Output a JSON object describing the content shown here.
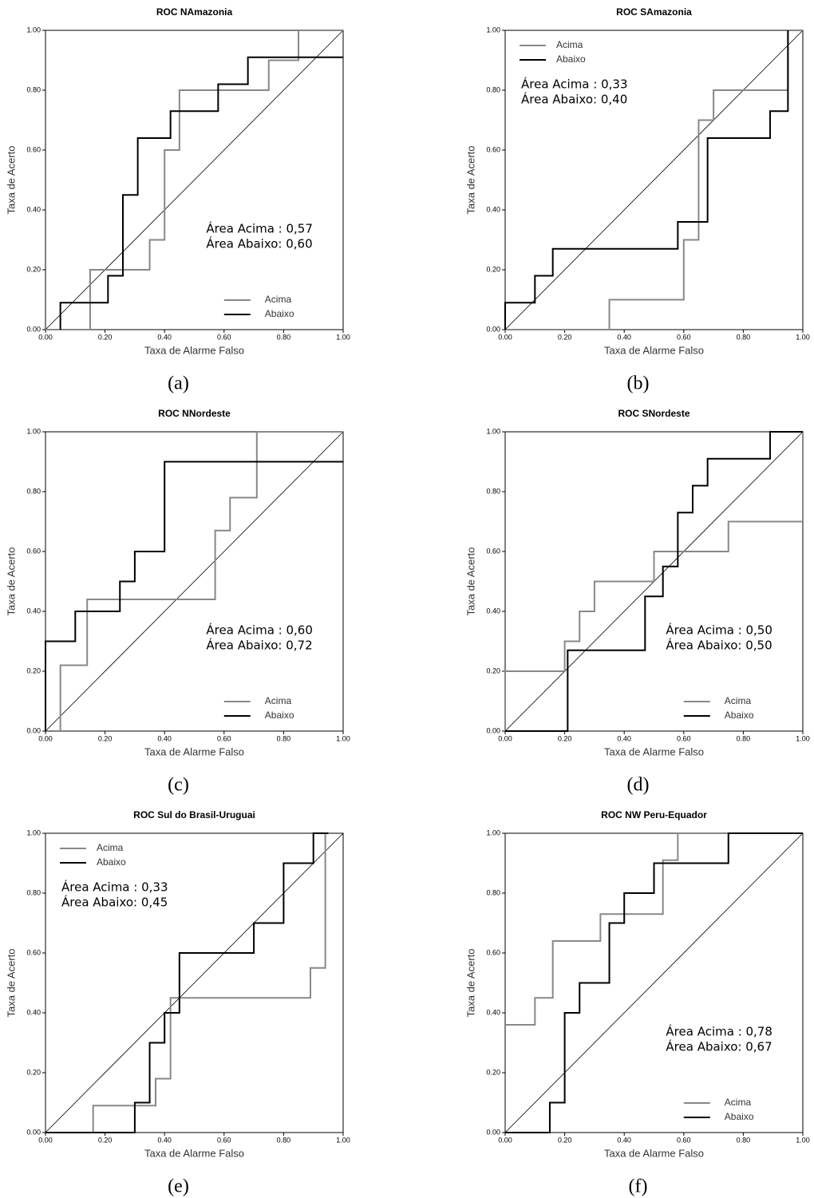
{
  "chart_data": [
    {
      "type": "line",
      "title": "ROC NAmazonia",
      "panel_label": "(a)",
      "xlabel": "Taxa de Alarme Falso",
      "ylabel": "Taxa de Acerto",
      "annotations": [
        "Área Acima : 0,57",
        "Área Abaixo: 0,60"
      ],
      "legend": "lower right",
      "diagonal": true,
      "xlim": [
        0,
        1
      ],
      "ylim": [
        0,
        1
      ],
      "xticks": [
        {
          "value": 0,
          "label": "0.00"
        },
        {
          "value": 0.2,
          "label": "0.20"
        },
        {
          "value": 0.4,
          "label": "0.40"
        },
        {
          "value": 0.6,
          "label": "0.60"
        },
        {
          "value": 0.8,
          "label": "0.80"
        },
        {
          "value": 1,
          "label": "1.00"
        }
      ],
      "yticks": [
        {
          "value": 0,
          "label": "0.00"
        },
        {
          "value": 0.2,
          "label": "0.20"
        },
        {
          "value": 0.4,
          "label": "0.40"
        },
        {
          "value": 0.6,
          "label": "0.60"
        },
        {
          "value": 0.8,
          "label": "0.80"
        },
        {
          "value": 1,
          "label": "1.00"
        }
      ],
      "series": [
        {
          "name": "Acima",
          "color": "#888888",
          "x": [
            0,
            0.15,
            0.15,
            0.35,
            0.35,
            0.4,
            0.4,
            0.45,
            0.45,
            0.75,
            0.75,
            0.85,
            0.85,
            1
          ],
          "values": [
            0,
            0,
            0.2,
            0.2,
            0.3,
            0.3,
            0.6,
            0.6,
            0.8,
            0.8,
            0.9,
            0.9,
            1,
            1
          ]
        },
        {
          "name": "Abaixo",
          "color": "#000000",
          "x": [
            0.05,
            0.05,
            0.21,
            0.21,
            0.26,
            0.26,
            0.31,
            0.31,
            0.42,
            0.42,
            0.58,
            0.58,
            0.68,
            0.68,
            1
          ],
          "values": [
            0,
            0.09,
            0.09,
            0.18,
            0.18,
            0.45,
            0.45,
            0.64,
            0.64,
            0.73,
            0.73,
            0.82,
            0.82,
            0.91,
            0.91
          ]
        }
      ]
    },
    {
      "type": "line",
      "title": "ROC SAmazonia",
      "panel_label": "(b)",
      "xlabel": "Taxa de Alarme Falso",
      "ylabel": "Taxa de Acerto",
      "annotations": [
        "Área Acima : 0,33",
        "Área Abaixo: 0,40"
      ],
      "legend": "upper left",
      "diagonal": true,
      "xlim": [
        0,
        1
      ],
      "ylim": [
        0,
        1
      ],
      "xticks": [
        {
          "value": 0,
          "label": "0.00"
        },
        {
          "value": 0.2,
          "label": "0.20"
        },
        {
          "value": 0.4,
          "label": "0.40"
        },
        {
          "value": 0.6,
          "label": "0.60"
        },
        {
          "value": 0.8,
          "label": "0.80"
        },
        {
          "value": 1,
          "label": "1.00"
        }
      ],
      "yticks": [
        {
          "value": 0,
          "label": "0.00"
        },
        {
          "value": 0.2,
          "label": "0.20"
        },
        {
          "value": 0.4,
          "label": "0.40"
        },
        {
          "value": 0.6,
          "label": "0.60"
        },
        {
          "value": 0.8,
          "label": "0.80"
        },
        {
          "value": 1,
          "label": "1.00"
        }
      ],
      "series": [
        {
          "name": "Acima",
          "color": "#888888",
          "x": [
            0,
            0.35,
            0.35,
            0.6,
            0.6,
            0.65,
            0.65,
            0.7,
            0.7,
            0.95,
            0.95,
            1
          ],
          "values": [
            0,
            0,
            0.1,
            0.1,
            0.3,
            0.3,
            0.7,
            0.7,
            0.8,
            0.8,
            1,
            1
          ]
        },
        {
          "name": "Abaixo",
          "color": "#000000",
          "x": [
            0,
            0,
            0.1,
            0.1,
            0.16,
            0.16,
            0.58,
            0.58,
            0.68,
            0.68,
            0.89,
            0.89,
            0.95,
            0.95
          ],
          "values": [
            0,
            0.09,
            0.09,
            0.18,
            0.18,
            0.27,
            0.27,
            0.36,
            0.36,
            0.64,
            0.64,
            0.73,
            0.73,
            1
          ]
        }
      ]
    },
    {
      "type": "line",
      "title": "ROC NNordeste",
      "panel_label": "(c)",
      "xlabel": "Taxa de Alarme Falso",
      "ylabel": "Taxa de Acerto",
      "annotations": [
        "Área Acima : 0,60",
        "Área Abaixo: 0,72"
      ],
      "legend": "lower right",
      "diagonal": true,
      "xlim": [
        0,
        1
      ],
      "ylim": [
        0,
        1
      ],
      "xticks": [
        {
          "value": 0,
          "label": "0.00"
        },
        {
          "value": 0.2,
          "label": "0.20"
        },
        {
          "value": 0.4,
          "label": "0.40"
        },
        {
          "value": 0.6,
          "label": "0.60"
        },
        {
          "value": 0.8,
          "label": "0.80"
        },
        {
          "value": 1,
          "label": "1.00"
        }
      ],
      "yticks": [
        {
          "value": 0,
          "label": "0.00"
        },
        {
          "value": 0.2,
          "label": "0.20"
        },
        {
          "value": 0.4,
          "label": "0.40"
        },
        {
          "value": 0.6,
          "label": "0.60"
        },
        {
          "value": 0.8,
          "label": "0.80"
        },
        {
          "value": 1,
          "label": "1.00"
        }
      ],
      "series": [
        {
          "name": "Acima",
          "color": "#888888",
          "x": [
            0.05,
            0.05,
            0.14,
            0.14,
            0.57,
            0.57,
            0.62,
            0.62,
            0.71,
            0.71,
            1
          ],
          "values": [
            0,
            0.22,
            0.22,
            0.44,
            0.44,
            0.67,
            0.67,
            0.78,
            0.78,
            1,
            1
          ]
        },
        {
          "name": "Abaixo",
          "color": "#000000",
          "x": [
            0,
            0,
            0.1,
            0.1,
            0.25,
            0.25,
            0.3,
            0.3,
            0.4,
            0.4,
            1
          ],
          "values": [
            0,
            0.3,
            0.3,
            0.4,
            0.4,
            0.5,
            0.5,
            0.6,
            0.6,
            0.9,
            0.9
          ]
        }
      ]
    },
    {
      "type": "line",
      "title": "ROC SNordeste",
      "panel_label": "(d)",
      "xlabel": "Taxa de Alarme Falso",
      "ylabel": "Taxa de Acerto",
      "annotations": [
        "Área Acima : 0,50",
        "Área Abaixo: 0,50"
      ],
      "legend": "lower right",
      "diagonal": true,
      "xlim": [
        0,
        1
      ],
      "ylim": [
        0,
        1
      ],
      "xticks": [
        {
          "value": 0,
          "label": "0.00"
        },
        {
          "value": 0.2,
          "label": "0.20"
        },
        {
          "value": 0.4,
          "label": "0.40"
        },
        {
          "value": 0.6,
          "label": "0.60"
        },
        {
          "value": 0.8,
          "label": "0.80"
        },
        {
          "value": 1,
          "label": "1.00"
        }
      ],
      "yticks": [
        {
          "value": 0,
          "label": "0.00"
        },
        {
          "value": 0.2,
          "label": "0.20"
        },
        {
          "value": 0.4,
          "label": "0.40"
        },
        {
          "value": 0.6,
          "label": "0.60"
        },
        {
          "value": 0.8,
          "label": "0.80"
        },
        {
          "value": 1,
          "label": "1.00"
        }
      ],
      "series": [
        {
          "name": "Acima",
          "color": "#888888",
          "x": [
            0,
            0,
            0.2,
            0.2,
            0.25,
            0.25,
            0.3,
            0.3,
            0.5,
            0.5,
            0.75,
            0.75,
            1,
            1
          ],
          "values": [
            0,
            0.2,
            0.2,
            0.3,
            0.3,
            0.4,
            0.4,
            0.5,
            0.5,
            0.6,
            0.6,
            0.7,
            0.7,
            1
          ]
        },
        {
          "name": "Abaixo",
          "color": "#000000",
          "x": [
            0,
            0.21,
            0.21,
            0.47,
            0.47,
            0.53,
            0.53,
            0.58,
            0.58,
            0.63,
            0.63,
            0.68,
            0.68,
            0.89,
            0.89,
            1
          ],
          "values": [
            0,
            0,
            0.27,
            0.27,
            0.45,
            0.45,
            0.55,
            0.55,
            0.73,
            0.73,
            0.82,
            0.82,
            0.91,
            0.91,
            1,
            1
          ]
        }
      ]
    },
    {
      "type": "line",
      "title": "ROC Sul do Brasil-Uruguai",
      "panel_label": "(e)",
      "xlabel": "Taxa de Alarme Falso",
      "ylabel": "Taxa de Acerto",
      "annotations": [
        "Área Acima : 0,33",
        "Área Abaixo: 0,45"
      ],
      "legend": "upper left",
      "diagonal": true,
      "xlim": [
        0,
        1
      ],
      "ylim": [
        0,
        1
      ],
      "xticks": [
        {
          "value": 0,
          "label": "0.00"
        },
        {
          "value": 0.2,
          "label": "0.20"
        },
        {
          "value": 0.4,
          "label": "0.40"
        },
        {
          "value": 0.6,
          "label": "0.60"
        },
        {
          "value": 0.8,
          "label": "0.80"
        },
        {
          "value": 1,
          "label": "1.00"
        }
      ],
      "yticks": [
        {
          "value": 0,
          "label": "0.00"
        },
        {
          "value": 0.2,
          "label": "0.20"
        },
        {
          "value": 0.4,
          "label": "0.40"
        },
        {
          "value": 0.6,
          "label": "0.60"
        },
        {
          "value": 0.8,
          "label": "0.80"
        },
        {
          "value": 1,
          "label": "1.00"
        }
      ],
      "series": [
        {
          "name": "Acima",
          "color": "#888888",
          "x": [
            0,
            0.16,
            0.16,
            0.37,
            0.37,
            0.42,
            0.42,
            0.89,
            0.89,
            0.94,
            0.94
          ],
          "values": [
            0,
            0,
            0.09,
            0.09,
            0.18,
            0.18,
            0.45,
            0.45,
            0.55,
            0.55,
            1
          ]
        },
        {
          "name": "Abaixo",
          "color": "#000000",
          "x": [
            0,
            0.3,
            0.3,
            0.35,
            0.35,
            0.4,
            0.4,
            0.45,
            0.45,
            0.7,
            0.7,
            0.8,
            0.8,
            0.9,
            0.9,
            0.95
          ],
          "values": [
            0,
            0,
            0.1,
            0.1,
            0.3,
            0.3,
            0.4,
            0.4,
            0.6,
            0.6,
            0.7,
            0.7,
            0.9,
            0.9,
            1,
            1
          ]
        }
      ]
    },
    {
      "type": "line",
      "title": "ROC NW Peru-Equador",
      "panel_label": "(f)",
      "xlabel": "Taxa de Alarme Falso",
      "ylabel": "Taxa de Acerto",
      "annotations": [
        "Área Acima : 0,78",
        "Área Abaixo: 0,67"
      ],
      "legend": "lower right",
      "diagonal": true,
      "xlim": [
        0,
        1
      ],
      "ylim": [
        0,
        1
      ],
      "xticks": [
        {
          "value": 0,
          "label": "0.00"
        },
        {
          "value": 0.2,
          "label": "0.20"
        },
        {
          "value": 0.4,
          "label": "0.40"
        },
        {
          "value": 0.6,
          "label": "0.60"
        },
        {
          "value": 0.8,
          "label": "0.80"
        },
        {
          "value": 1,
          "label": "1.00"
        }
      ],
      "yticks": [
        {
          "value": 0,
          "label": "0.00"
        },
        {
          "value": 0.2,
          "label": "0.20"
        },
        {
          "value": 0.4,
          "label": "0.40"
        },
        {
          "value": 0.6,
          "label": "0.60"
        },
        {
          "value": 0.8,
          "label": "0.80"
        },
        {
          "value": 1,
          "label": "1.00"
        }
      ],
      "series": [
        {
          "name": "Acima",
          "color": "#888888",
          "x": [
            0,
            0.1,
            0.1,
            0.16,
            0.16,
            0.32,
            0.32,
            0.53,
            0.53,
            0.58,
            0.58,
            1
          ],
          "values": [
            0.36,
            0.36,
            0.45,
            0.45,
            0.64,
            0.64,
            0.73,
            0.73,
            0.91,
            0.91,
            1,
            1
          ]
        },
        {
          "name": "Abaixo",
          "color": "#000000",
          "x": [
            0,
            0.15,
            0.15,
            0.2,
            0.2,
            0.25,
            0.25,
            0.35,
            0.35,
            0.4,
            0.4,
            0.5,
            0.5,
            0.75,
            0.75,
            1
          ],
          "values": [
            0,
            0,
            0.1,
            0.1,
            0.4,
            0.4,
            0.5,
            0.5,
            0.7,
            0.7,
            0.8,
            0.8,
            0.9,
            0.9,
            1,
            1
          ]
        }
      ]
    }
  ]
}
